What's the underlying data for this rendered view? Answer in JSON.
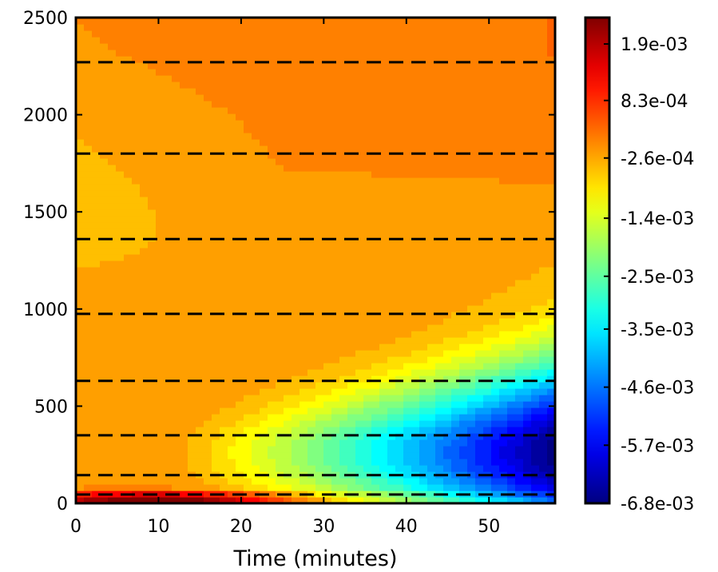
{
  "chart_data": {
    "type": "heatmap",
    "title": "",
    "xlabel": "Time (minutes)",
    "ylabel": "",
    "xlim": [
      0,
      58
    ],
    "ylim": [
      0,
      2500
    ],
    "xticks": [
      "0",
      "10",
      "20",
      "30",
      "40",
      "50"
    ],
    "yticks": [
      "0",
      "500",
      "1000",
      "1500",
      "2000",
      "2500"
    ],
    "colormap": "jet",
    "colorbar": {
      "min": -0.0068,
      "max": 0.0024,
      "tick_values": [
        0.0019,
        0.00083,
        -0.00026,
        -0.0014,
        -0.0025,
        -0.0035,
        -0.0046,
        -0.0057,
        -0.0068
      ],
      "tick_labels": [
        "1.9e-03",
        "8.3e-04",
        "-2.6e-04",
        "-1.4e-03",
        "-2.5e-03",
        "-3.5e-03",
        "-4.6e-03",
        "-5.7e-03",
        "-6.8e-03"
      ]
    },
    "dashed_lines_y": [
      45,
      145,
      350,
      630,
      975,
      1360,
      1800,
      2270
    ],
    "grid": false,
    "legend": "none"
  }
}
